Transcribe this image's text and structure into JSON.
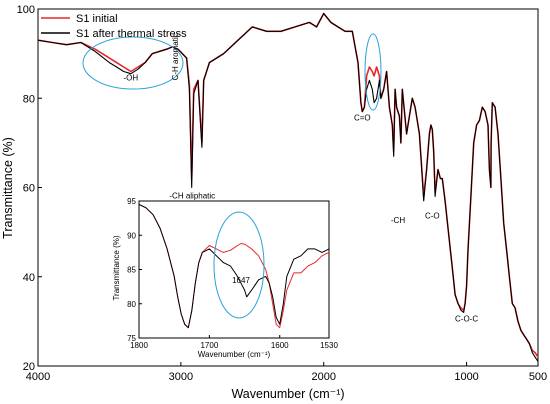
{
  "chart_data": {
    "type": "line",
    "xlabel": "Wavenumber (cm⁻¹)",
    "ylabel": "Transmittance (%)",
    "xlim": [
      4000,
      500
    ],
    "ylim": [
      20,
      100
    ],
    "xticks": [
      "4000",
      "3000",
      "2000",
      "1000",
      "500"
    ],
    "yticks": [
      "100",
      "80",
      "60",
      "40",
      "20"
    ],
    "legend_position": "top-left",
    "series": [
      {
        "name": "S1 initial",
        "color": "#e8272c",
        "x": [
          4000,
          3900,
          3800,
          3700,
          3600,
          3500,
          3450,
          3400,
          3350,
          3300,
          3250,
          3200,
          3100,
          3060,
          3020,
          2990,
          2960,
          2940,
          2924,
          2910,
          2880,
          2853,
          2840,
          2800,
          2700,
          2600,
          2500,
          2400,
          2300,
          2200,
          2100,
          2050,
          2000,
          1950,
          1900,
          1850,
          1800,
          1760,
          1740,
          1730,
          1715,
          1700,
          1680,
          1660,
          1647,
          1630,
          1610,
          1600,
          1580,
          1560,
          1540,
          1520,
          1510,
          1500,
          1490,
          1470,
          1460,
          1450,
          1420,
          1400,
          1380,
          1360,
          1330,
          1300,
          1280,
          1260,
          1250,
          1240,
          1230,
          1220,
          1200,
          1183,
          1170,
          1150,
          1120,
          1100,
          1080,
          1060,
          1040,
          1020,
          1010,
          1000,
          990,
          970,
          950,
          930,
          910,
          890,
          870,
          850,
          840,
          830,
          828,
          820,
          800,
          780,
          760,
          740,
          720,
          700,
          680,
          660,
          640,
          620,
          600,
          580,
          560,
          540,
          520,
          500
        ],
        "y": [
          93,
          92.5,
          92,
          92.5,
          91,
          89,
          88,
          87,
          86,
          87,
          88,
          90,
          91,
          91.5,
          91,
          90,
          89,
          83,
          62,
          82,
          84,
          70,
          84,
          88,
          90,
          93,
          96,
          95,
          95,
          96,
          97,
          96,
          99,
          97,
          96,
          95,
          95,
          88,
          79,
          77,
          78,
          85,
          87,
          86,
          85,
          87,
          85,
          80,
          82,
          86,
          78,
          74,
          68,
          82,
          78,
          76,
          70,
          82,
          72,
          76,
          80,
          78,
          72,
          58,
          64,
          72,
          74,
          73,
          68,
          59,
          64,
          62,
          62,
          57,
          48,
          42,
          36,
          34,
          33,
          32.5,
          34,
          38,
          46,
          58,
          70,
          74,
          75,
          78,
          77,
          74,
          64,
          60,
          70,
          79,
          78,
          72,
          62,
          52,
          46,
          40,
          34,
          33,
          30,
          28,
          27,
          26,
          25,
          23.5,
          23,
          22
        ]
      },
      {
        "name": "S1 after thermal stress",
        "color": "#000000",
        "x": [
          4000,
          3900,
          3800,
          3700,
          3600,
          3500,
          3450,
          3400,
          3350,
          3300,
          3250,
          3200,
          3100,
          3060,
          3020,
          2990,
          2960,
          2940,
          2924,
          2910,
          2880,
          2853,
          2840,
          2800,
          2700,
          2600,
          2500,
          2400,
          2300,
          2200,
          2100,
          2050,
          2000,
          1950,
          1900,
          1850,
          1800,
          1760,
          1740,
          1730,
          1715,
          1700,
          1680,
          1660,
          1647,
          1630,
          1610,
          1600,
          1580,
          1560,
          1540,
          1520,
          1510,
          1500,
          1490,
          1470,
          1460,
          1450,
          1420,
          1400,
          1380,
          1360,
          1330,
          1300,
          1280,
          1260,
          1250,
          1240,
          1230,
          1220,
          1200,
          1183,
          1170,
          1150,
          1120,
          1100,
          1080,
          1060,
          1040,
          1020,
          1010,
          1000,
          990,
          970,
          950,
          930,
          910,
          890,
          870,
          850,
          840,
          830,
          828,
          820,
          800,
          780,
          760,
          740,
          720,
          700,
          680,
          660,
          640,
          620,
          600,
          580,
          560,
          540,
          520,
          500
        ],
        "y": [
          93,
          92.5,
          92,
          92.5,
          90.5,
          88,
          87,
          86,
          85.5,
          86.5,
          88,
          90,
          91,
          91.5,
          91,
          90,
          89,
          82,
          60,
          81,
          84,
          69,
          84,
          88,
          90,
          93,
          96,
          95,
          95,
          96,
          97,
          96,
          99,
          97,
          96,
          95,
          95,
          88,
          79,
          77,
          78,
          82,
          84,
          82,
          79,
          80,
          84,
          80,
          82,
          86,
          78,
          74,
          67,
          82,
          78,
          76,
          70,
          82,
          72,
          76,
          80,
          78,
          72,
          57,
          64,
          72,
          74,
          73,
          68,
          58,
          64,
          62,
          62,
          57,
          48,
          42,
          36,
          34,
          32.5,
          32,
          34,
          38,
          46,
          58,
          70,
          74,
          75,
          78,
          77,
          74,
          64,
          60,
          70,
          79,
          78,
          72,
          62,
          52,
          46,
          40,
          34,
          33,
          30,
          28,
          27,
          26,
          25,
          23,
          22,
          21
        ]
      }
    ],
    "annotations": [
      {
        "text": "-OH",
        "x": 3350,
        "y": 84
      },
      {
        "text": "C-H aromatic",
        "x": 3020,
        "y": 84
      },
      {
        "text": "-CH aliphatic",
        "x": 2920,
        "y": 57.5
      },
      {
        "text": "C=O",
        "x": 1730,
        "y": 75
      },
      {
        "text": "-CH",
        "x": 1480,
        "y": 52
      },
      {
        "text": "C-O",
        "x": 1240,
        "y": 53
      },
      {
        "text": "C-O-C",
        "x": 1000,
        "y": 30
      }
    ],
    "inset": {
      "xlabel": "Wavenumber (cm⁻¹)",
      "ylabel": "Transmittance (%)",
      "xlim": [
        1800,
        1530
      ],
      "ylim": [
        75,
        95
      ],
      "xticks": [
        "1800",
        "1700",
        "1600",
        "1530"
      ],
      "yticks": [
        "95",
        "90",
        "85",
        "80",
        "75"
      ],
      "peak_label": "1647",
      "series": [
        {
          "name": "S1 initial",
          "color": "#e8272c",
          "x": [
            1800,
            1790,
            1780,
            1770,
            1760,
            1750,
            1745,
            1740,
            1735,
            1730,
            1725,
            1720,
            1715,
            1710,
            1700,
            1690,
            1680,
            1670,
            1660,
            1655,
            1650,
            1647,
            1640,
            1630,
            1620,
            1615,
            1610,
            1605,
            1600,
            1595,
            1590,
            1580,
            1570,
            1560,
            1550,
            1540,
            1530
          ],
          "y": [
            94.5,
            94,
            93,
            91,
            88,
            84,
            81,
            78.5,
            77,
            76.5,
            79,
            83,
            86,
            87.5,
            88.5,
            88,
            87.5,
            87.8,
            88.5,
            88.8,
            88.7,
            88.5,
            88,
            87,
            85,
            83,
            80,
            77,
            76.5,
            79,
            82,
            84.5,
            84.5,
            85.5,
            86,
            87,
            87.5
          ]
        },
        {
          "name": "S1 after thermal stress",
          "color": "#000000",
          "x": [
            1800,
            1790,
            1780,
            1770,
            1760,
            1750,
            1745,
            1740,
            1735,
            1730,
            1725,
            1720,
            1715,
            1710,
            1700,
            1690,
            1680,
            1670,
            1660,
            1655,
            1650,
            1647,
            1640,
            1630,
            1620,
            1615,
            1610,
            1605,
            1600,
            1595,
            1590,
            1580,
            1570,
            1560,
            1550,
            1540,
            1530
          ],
          "y": [
            94.5,
            94,
            93,
            91,
            88,
            84,
            81,
            78.5,
            77,
            76.5,
            79,
            83,
            86,
            87.5,
            88,
            87,
            86,
            85.5,
            84,
            83,
            82,
            81,
            82,
            83.5,
            84,
            83,
            81,
            78,
            77,
            80,
            84,
            86.5,
            87,
            88,
            88,
            87.5,
            88
          ]
        }
      ]
    }
  }
}
